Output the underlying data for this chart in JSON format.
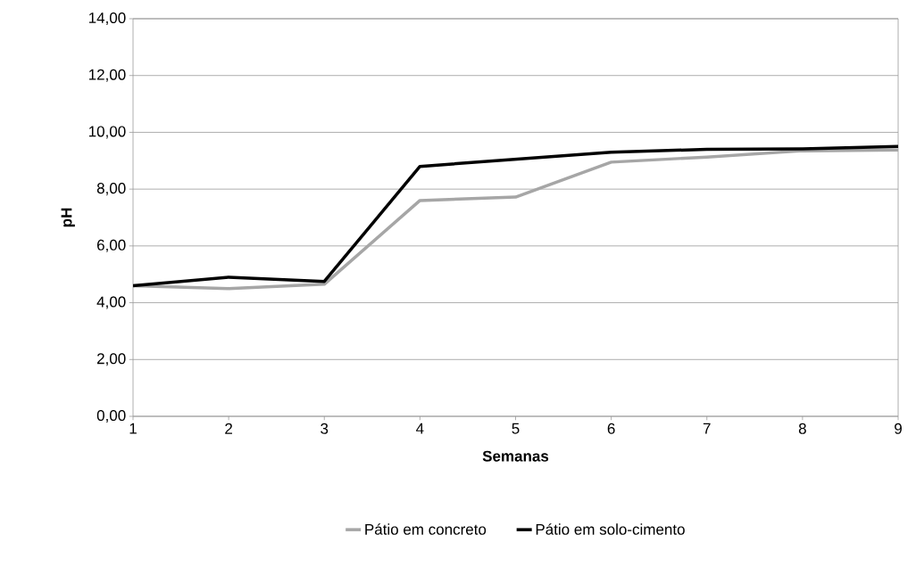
{
  "chart_data": {
    "type": "line",
    "xlabel": "Semanas",
    "ylabel": "pH",
    "x": [
      1,
      2,
      3,
      4,
      5,
      6,
      7,
      8,
      9
    ],
    "series": [
      {
        "name": "Pátio em concreto",
        "color": "#a6a6a6",
        "values": [
          4.6,
          4.5,
          4.65,
          7.6,
          7.72,
          8.95,
          9.13,
          9.35,
          9.38
        ]
      },
      {
        "name": "Pátio em solo-cimento",
        "color": "#000000",
        "values": [
          4.6,
          4.9,
          4.75,
          8.8,
          9.05,
          9.3,
          9.4,
          9.42,
          9.5
        ]
      }
    ],
    "xlim": [
      1,
      9
    ],
    "xticks": [
      1,
      2,
      3,
      4,
      5,
      6,
      7,
      8,
      9
    ],
    "ylim": [
      0,
      14
    ],
    "yticks": [
      {
        "value": 0,
        "label": "0,00"
      },
      {
        "value": 2,
        "label": "2,00"
      },
      {
        "value": 4,
        "label": "4,00"
      },
      {
        "value": 6,
        "label": "6,00"
      },
      {
        "value": 8,
        "label": "8,00"
      },
      {
        "value": 10,
        "label": "10,00"
      },
      {
        "value": 12,
        "label": "12,00"
      },
      {
        "value": 14,
        "label": "14,00"
      }
    ],
    "grid": "y",
    "legend": "bottom",
    "marker": "none",
    "line_style": "solid"
  }
}
